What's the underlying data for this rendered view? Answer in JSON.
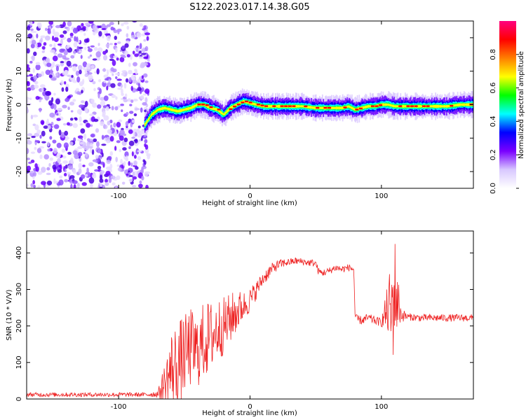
{
  "title": "S122.2023.017.14.38.G05",
  "chart_data": [
    {
      "type": "heatmap",
      "xlabel": "Height of straight line (km)",
      "ylabel": "Frequency (Hz)",
      "xlim": [
        -170,
        170
      ],
      "ylim": [
        -25,
        25
      ],
      "xticks": [
        -100,
        0,
        100
      ],
      "yticks": [
        -20,
        -10,
        0,
        10,
        20
      ],
      "noise_region_x": [
        -170,
        -77
      ],
      "ridge": {
        "x": [
          -80,
          -75,
          -70,
          -65,
          -60,
          -55,
          -50,
          -45,
          -40,
          -35,
          -30,
          -25,
          -20,
          -15,
          -10,
          -5,
          0,
          5,
          10,
          20,
          30,
          40,
          50,
          60,
          70,
          75,
          80,
          85,
          90,
          95,
          100,
          105,
          110,
          120,
          130,
          140,
          150,
          160,
          170
        ],
        "y": [
          -6,
          -3,
          -1.5,
          -1,
          -1.5,
          -2,
          -1.5,
          -1,
          0,
          0,
          -1,
          -1.5,
          -3,
          -1,
          0,
          1,
          0.5,
          0,
          -0.5,
          -0.5,
          -0.5,
          -0.5,
          -1,
          -1,
          -1,
          -0.5,
          -1.5,
          -1,
          -0.5,
          -0.5,
          0,
          0,
          -0.5,
          -0.5,
          -0.5,
          -0.5,
          -0.5,
          0,
          0
        ]
      },
      "colorbar": {
        "label": "Normalized spectral amplitude",
        "ticks": [
          0.0,
          0.2,
          0.4,
          0.6,
          0.8
        ],
        "range": [
          0,
          1
        ],
        "colors": [
          "#ffffff",
          "#d8c8ff",
          "#7a00ff",
          "#0000ff",
          "#00ffff",
          "#00ff00",
          "#ffff00",
          "#ff7f00",
          "#ff0000",
          "#ff0080"
        ]
      }
    },
    {
      "type": "line",
      "xlabel": "Height of straight line (km)",
      "ylabel": "SNR (10 * V/V)",
      "xlim": [
        -170,
        170
      ],
      "ylim": [
        0,
        460
      ],
      "xticks": [
        -100,
        0,
        100
      ],
      "yticks": [
        0,
        100,
        200,
        300,
        400
      ],
      "color": "#ee2222",
      "series": [
        {
          "x": [
            -170,
            -140,
            -110,
            -80,
            -70,
            -65,
            -60,
            -55,
            -50,
            -45,
            -40,
            -35,
            -30,
            -25,
            -20,
            -15,
            -10,
            -5,
            0,
            5,
            10,
            15,
            20,
            25,
            30,
            35,
            40,
            45,
            50,
            52,
            55,
            60,
            65,
            70,
            75,
            79,
            80,
            85,
            90,
            95,
            100,
            104,
            106,
            108,
            110,
            113,
            115,
            120,
            130,
            140,
            150,
            160,
            170
          ],
          "y": [
            12,
            12,
            12,
            12,
            14,
            40,
            80,
            95,
            120,
            140,
            130,
            160,
            170,
            190,
            200,
            220,
            240,
            255,
            270,
            300,
            330,
            350,
            365,
            372,
            375,
            378,
            376,
            373,
            372,
            350,
            345,
            350,
            360,
            355,
            360,
            355,
            220,
            215,
            222,
            215,
            210,
            240,
            250,
            230,
            300,
            260,
            230,
            225,
            222,
            222,
            222,
            222,
            222
          ],
          "spread": [
            6,
            6,
            6,
            6,
            10,
            60,
            110,
            120,
            110,
            110,
            100,
            110,
            100,
            90,
            80,
            70,
            60,
            40,
            35,
            25,
            20,
            18,
            15,
            12,
            10,
            10,
            10,
            10,
            10,
            10,
            10,
            10,
            10,
            10,
            10,
            10,
            12,
            12,
            12,
            12,
            12,
            60,
            100,
            150,
            160,
            70,
            20,
            10,
            10,
            10,
            10,
            10,
            10
          ]
        }
      ]
    }
  ]
}
